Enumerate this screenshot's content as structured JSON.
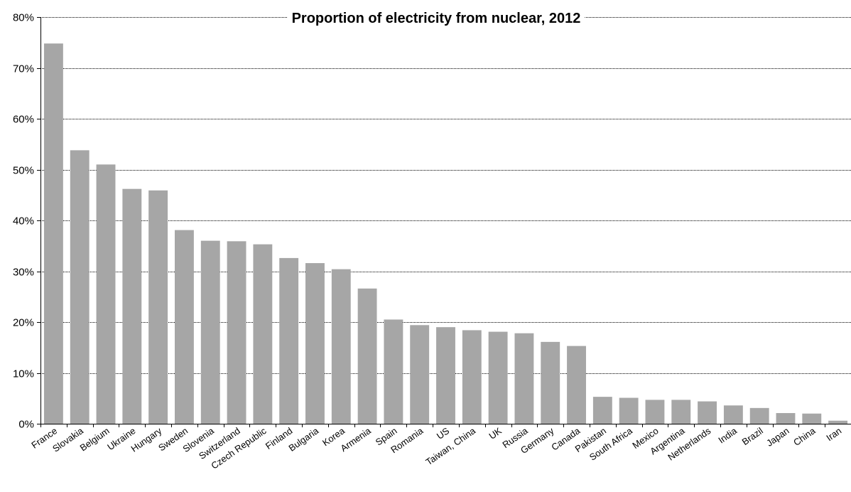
{
  "chart_data": {
    "type": "bar",
    "title": "Proportion of electricity from nuclear, 2012",
    "xlabel": "",
    "ylabel": "",
    "ylim": [
      0,
      80
    ],
    "y_ticks": [
      "0%",
      "10%",
      "20%",
      "30%",
      "40%",
      "50%",
      "60%",
      "70%",
      "80%"
    ],
    "y_tick_values": [
      0,
      10,
      20,
      30,
      40,
      50,
      60,
      70,
      80
    ],
    "y_unit": "%",
    "grid": true,
    "legend": "none",
    "bar_color": "#a6a6a6",
    "categories": [
      "France",
      "Slovakia",
      "Belgium",
      "Ukraine",
      "Hungary",
      "Sweden",
      "Slovenia",
      "Switzerland",
      "Czech Republic",
      "Finland",
      "Bulgaria",
      "Korea",
      "Armenia",
      "Spain",
      "Romania",
      "US",
      "Taiwan, China",
      "UK",
      "Russia",
      "Germany",
      "Canada",
      "Pakistan",
      "South Africa",
      "Mexico",
      "Argentina",
      "Netherlands",
      "India",
      "Brazil",
      "Japan",
      "China",
      "Iran"
    ],
    "values": [
      74.8,
      53.8,
      51.0,
      46.2,
      45.9,
      38.1,
      36.0,
      35.9,
      35.3,
      32.6,
      31.6,
      30.4,
      26.6,
      20.5,
      19.4,
      19.0,
      18.4,
      18.1,
      17.8,
      16.1,
      15.3,
      5.3,
      5.1,
      4.7,
      4.7,
      4.4,
      3.6,
      3.1,
      2.1,
      2.0,
      0.6
    ]
  }
}
